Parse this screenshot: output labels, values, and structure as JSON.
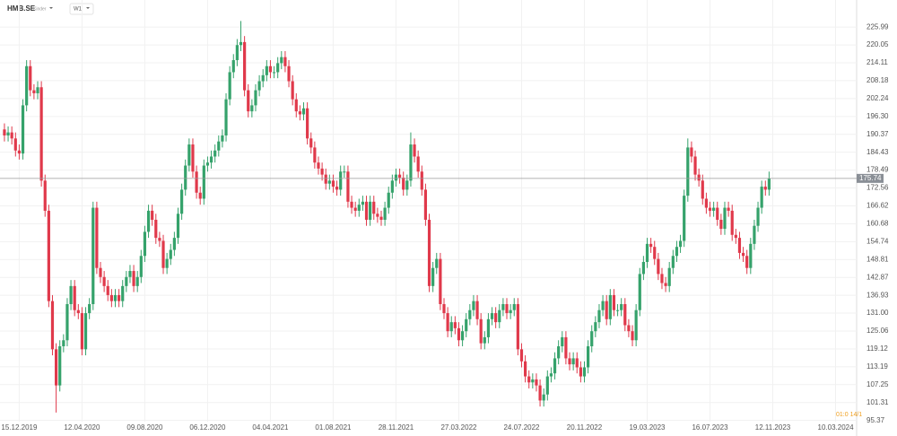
{
  "chart_data": {
    "type": "candlestick",
    "title": "HMB.SE",
    "subtitle": "Kinder",
    "timeframe": "W1",
    "countdown": "01:0 14/1",
    "up_color": "#35a26b",
    "down_color": "#e0394b",
    "grid": true,
    "xlim": [
      -1.2,
      230.7
    ],
    "ylim": [
      92,
      230.5
    ],
    "xticks": [
      {
        "value": 4,
        "label": "15.12.2019"
      },
      {
        "value": 21,
        "label": "12.04.2020"
      },
      {
        "value": 38,
        "label": "09.08.2020"
      },
      {
        "value": 55,
        "label": "06.12.2020"
      },
      {
        "value": 72,
        "label": "04.04.2021"
      },
      {
        "value": 89,
        "label": "01.08.2021"
      },
      {
        "value": 106,
        "label": "28.11.2021"
      },
      {
        "value": 123,
        "label": "27.03.2022"
      },
      {
        "value": 140,
        "label": "24.07.2022"
      },
      {
        "value": 157,
        "label": "20.11.2022"
      },
      {
        "value": 174,
        "label": "19.03.2023"
      },
      {
        "value": 191,
        "label": "16.07.2023"
      },
      {
        "value": 208,
        "label": "12.11.2023"
      },
      {
        "value": 225,
        "label": "10.03.2024"
      }
    ],
    "yticks": [
      225.99,
      220.05,
      214.11,
      208.18,
      202.24,
      {
        "value": 196.3,
        "label": "196.30"
      },
      190.37,
      184.43,
      178.49,
      172.56,
      166.62,
      160.68,
      154.74,
      148.81,
      142.87,
      136.93,
      {
        "value": 131,
        "label": "131.00"
      },
      125.06,
      119.12,
      113.19,
      107.25,
      101.31,
      95.37
    ],
    "open": [
      192,
      190,
      191,
      189,
      185,
      184,
      200,
      213,
      205,
      204,
      206,
      175,
      165,
      135,
      119,
      107,
      120,
      122,
      134,
      140,
      132,
      131,
      119,
      131,
      134,
      166,
      146,
      143,
      140,
      137,
      135,
      137,
      135,
      140,
      143,
      145,
      140,
      143,
      150,
      158,
      165,
      162,
      156,
      155,
      146,
      149,
      152,
      156,
      164,
      172,
      180,
      187,
      178,
      171,
      169,
      180,
      181,
      183,
      185,
      188,
      190,
      202,
      211,
      215,
      220,
      221,
      205,
      198,
      200,
      205,
      208,
      210,
      213,
      211,
      211,
      214,
      216,
      213,
      208,
      202,
      198,
      197,
      199,
      189,
      186,
      181,
      179,
      177,
      174,
      175,
      173,
      172,
      178,
      178,
      168,
      166,
      165,
      167,
      168,
      162,
      168,
      164,
      163,
      162,
      166,
      171,
      175,
      177,
      176,
      172,
      175,
      187,
      183,
      178,
      172,
      162,
      140,
      146,
      149,
      134,
      131,
      125,
      128,
      126,
      122,
      125,
      129,
      132,
      135,
      129,
      121,
      123,
      129,
      131,
      128,
      132,
      134,
      131,
      132,
      134,
      119,
      115,
      110,
      108,
      109,
      107,
      102,
      104,
      110,
      111,
      116,
      120,
      123,
      116,
      114,
      116,
      113,
      110,
      113,
      120,
      125,
      128,
      132,
      135,
      129,
      137,
      132,
      132,
      134,
      127,
      125,
      122,
      132,
      144,
      148,
      154,
      153,
      149,
      144,
      141,
      140,
      146,
      150,
      153,
      155,
      170,
      186,
      183,
      177,
      175,
      169,
      166,
      165,
      166,
      162,
      159,
      166,
      165,
      157,
      156,
      151,
      150,
      146,
      154,
      160,
      166,
      173,
      172
    ],
    "high": [
      194,
      193,
      193,
      191,
      187,
      202,
      215,
      215,
      207,
      208,
      208,
      177,
      167,
      137,
      121,
      122,
      124,
      136,
      142,
      142,
      134,
      133,
      133,
      136,
      168,
      168,
      148,
      145,
      142,
      139,
      139,
      139,
      142,
      145,
      147,
      147,
      145,
      152,
      160,
      167,
      167,
      164,
      158,
      157,
      151,
      154,
      158,
      166,
      174,
      182,
      189,
      189,
      180,
      173,
      182,
      183,
      185,
      187,
      190,
      192,
      204,
      213,
      217,
      222,
      228,
      223,
      207,
      202,
      207,
      210,
      212,
      215,
      215,
      213,
      216,
      218,
      218,
      215,
      210,
      204,
      200,
      201,
      201,
      191,
      188,
      183,
      181,
      179,
      177,
      177,
      175,
      180,
      180,
      180,
      170,
      168,
      169,
      170,
      170,
      170,
      170,
      166,
      165,
      168,
      173,
      177,
      179,
      179,
      178,
      177,
      191,
      189,
      185,
      180,
      174,
      164,
      148,
      151,
      151,
      136,
      133,
      130,
      130,
      128,
      127,
      131,
      134,
      137,
      137,
      131,
      125,
      131,
      133,
      133,
      134,
      136,
      136,
      134,
      136,
      136,
      121,
      117,
      112,
      111,
      111,
      109,
      106,
      112,
      113,
      118,
      122,
      125,
      125,
      118,
      118,
      118,
      115,
      115,
      122,
      127,
      130,
      134,
      137,
      137,
      139,
      139,
      134,
      136,
      136,
      129,
      127,
      134,
      146,
      150,
      156,
      156,
      155,
      151,
      146,
      143,
      148,
      152,
      155,
      157,
      172,
      189,
      188,
      185,
      179,
      177,
      171,
      168,
      168,
      168,
      164,
      168,
      168,
      167,
      159,
      158,
      153,
      152,
      156,
      162,
      168,
      175,
      175,
      178
    ],
    "low": [
      188,
      188,
      187,
      183,
      182,
      182,
      198,
      203,
      202,
      202,
      173,
      163,
      133,
      117,
      98,
      105,
      118,
      120,
      132,
      130,
      129,
      117,
      117,
      129,
      132,
      144,
      141,
      138,
      135,
      133,
      133,
      133,
      133,
      138,
      141,
      138,
      138,
      141,
      148,
      156,
      160,
      154,
      153,
      144,
      144,
      147,
      150,
      154,
      162,
      170,
      178,
      176,
      169,
      167,
      167,
      178,
      179,
      181,
      183,
      186,
      188,
      200,
      209,
      213,
      218,
      203,
      196,
      196,
      198,
      203,
      206,
      208,
      209,
      209,
      209,
      212,
      211,
      206,
      200,
      196,
      195,
      195,
      187,
      184,
      179,
      177,
      175,
      172,
      172,
      171,
      170,
      170,
      176,
      166,
      164,
      163,
      163,
      165,
      160,
      160,
      162,
      161,
      160,
      160,
      164,
      169,
      173,
      174,
      170,
      170,
      173,
      181,
      176,
      170,
      160,
      138,
      138,
      144,
      132,
      129,
      123,
      123,
      124,
      120,
      120,
      123,
      127,
      130,
      127,
      119,
      119,
      121,
      127,
      126,
      126,
      130,
      129,
      129,
      130,
      117,
      113,
      108,
      106,
      106,
      105,
      100,
      100,
      102,
      108,
      109,
      114,
      118,
      114,
      112,
      112,
      111,
      108,
      108,
      111,
      118,
      123,
      126,
      130,
      127,
      127,
      130,
      130,
      130,
      125,
      123,
      120,
      120,
      130,
      142,
      146,
      151,
      147,
      142,
      139,
      138,
      138,
      144,
      148,
      151,
      153,
      168,
      181,
      175,
      173,
      167,
      164,
      163,
      163,
      160,
      157,
      157,
      163,
      155,
      154,
      149,
      148,
      144,
      144,
      152,
      158,
      164,
      170,
      170
    ],
    "close": [
      190,
      191,
      189,
      185,
      184,
      200,
      213,
      205,
      204,
      206,
      175,
      165,
      135,
      119,
      107,
      120,
      122,
      134,
      140,
      132,
      131,
      119,
      131,
      134,
      166,
      146,
      143,
      140,
      137,
      135,
      137,
      135,
      140,
      143,
      145,
      140,
      143,
      150,
      158,
      165,
      162,
      156,
      155,
      146,
      149,
      152,
      156,
      164,
      172,
      180,
      187,
      178,
      171,
      169,
      180,
      181,
      183,
      185,
      188,
      190,
      202,
      211,
      215,
      220,
      221,
      205,
      198,
      200,
      205,
      208,
      210,
      213,
      211,
      211,
      214,
      216,
      213,
      208,
      202,
      198,
      197,
      199,
      189,
      186,
      181,
      179,
      177,
      174,
      175,
      173,
      172,
      178,
      178,
      168,
      166,
      165,
      167,
      168,
      162,
      168,
      164,
      163,
      162,
      166,
      171,
      175,
      177,
      176,
      172,
      175,
      187,
      183,
      178,
      172,
      162,
      140,
      146,
      149,
      134,
      131,
      125,
      128,
      126,
      122,
      125,
      129,
      132,
      135,
      129,
      121,
      123,
      129,
      131,
      128,
      132,
      134,
      131,
      132,
      134,
      119,
      115,
      110,
      108,
      109,
      107,
      102,
      104,
      110,
      111,
      116,
      120,
      123,
      116,
      114,
      116,
      113,
      110,
      113,
      120,
      125,
      128,
      132,
      135,
      129,
      137,
      132,
      132,
      134,
      127,
      125,
      122,
      132,
      144,
      148,
      154,
      153,
      149,
      144,
      141,
      140,
      146,
      150,
      153,
      155,
      170,
      186,
      183,
      177,
      175,
      169,
      166,
      165,
      166,
      162,
      159,
      166,
      165,
      157,
      156,
      151,
      150,
      146,
      154,
      160,
      166,
      173,
      172,
      175.74
    ]
  }
}
